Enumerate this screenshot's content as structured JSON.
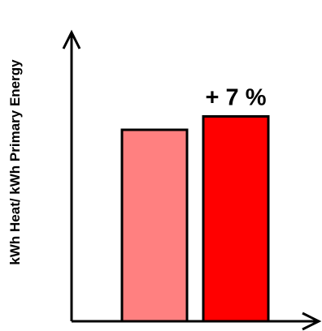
{
  "chart_data": {
    "type": "bar",
    "title": "",
    "xlabel": "",
    "ylabel": "kWh Heat/ kWh Primary Energy",
    "categories": [
      "",
      ""
    ],
    "values": [
      1.0,
      1.07
    ],
    "ylim": [
      0,
      1.5
    ],
    "annotation": "+ 7 %",
    "grid": false,
    "colors": {
      "bars": [
        "#ff8080",
        "#ff0000"
      ],
      "outline": "#000000",
      "axis": "#000000"
    }
  }
}
